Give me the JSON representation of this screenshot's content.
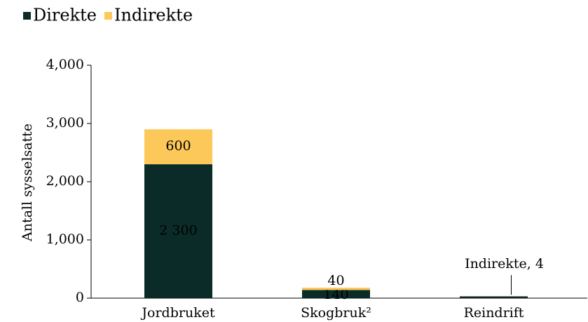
{
  "chart_data": {
    "type": "stacked_bar",
    "categories": [
      "Jordbruket",
      "Skogbruk²",
      "Reindrift"
    ],
    "series": [
      {
        "name": "Direkte",
        "color": "#0b2b29",
        "values": [
          2300,
          140,
          30
        ],
        "value_labels": [
          "2 300",
          "140",
          null
        ]
      },
      {
        "name": "Indirekte",
        "color": "#fdc85a",
        "values": [
          600,
          40,
          4
        ],
        "value_labels": [
          "600",
          "40",
          "Indirekte, 4"
        ]
      }
    ],
    "y_label": "Antall sysselsatte",
    "ylim": [
      0,
      4000
    ],
    "yticks": [
      0,
      {
        "value": 1000,
        "label": "1,000"
      },
      {
        "value": 2000,
        "label": "2,000"
      },
      {
        "value": 3000,
        "label": "3,000"
      },
      {
        "value": 4000,
        "label": "4,000"
      }
    ],
    "legend": "top-left"
  }
}
